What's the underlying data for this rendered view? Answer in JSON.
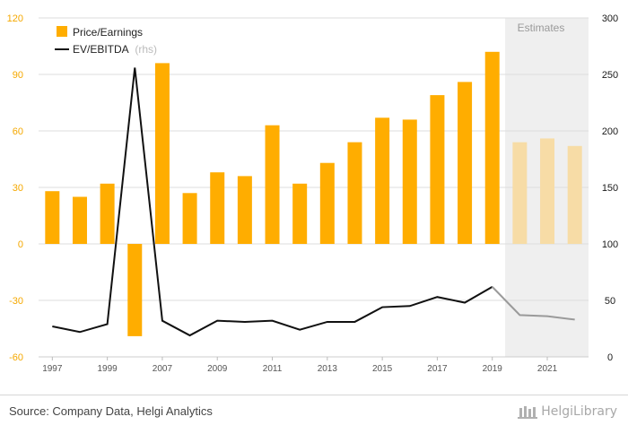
{
  "chart_data": {
    "type": "bar+line",
    "x": [
      1997,
      1998,
      1999,
      2000,
      2007,
      2008,
      2009,
      2010,
      2011,
      2012,
      2013,
      2014,
      2015,
      2016,
      2017,
      2018,
      2019,
      2020,
      2021,
      2022
    ],
    "x_tick_labels": [
      "1997",
      "1999",
      "2007",
      "2009",
      "2011",
      "2013",
      "2015",
      "2017",
      "2019",
      "2021"
    ],
    "estimate_start_index": 17,
    "series": [
      {
        "name": "Price/Earnings",
        "type": "bar",
        "axis": "left",
        "color": "#ffad00",
        "estimate_color": "#f7dca6",
        "values": [
          28,
          25,
          32,
          -49,
          96,
          27,
          38,
          36,
          63,
          32,
          43,
          54,
          67,
          66,
          79,
          86,
          102,
          54,
          56,
          52
        ]
      },
      {
        "name": "EV/EBITDA",
        "name_suffix": "(rhs)",
        "type": "line",
        "axis": "right",
        "color": "#111111",
        "estimate_color": "#9a9a9a",
        "values": [
          27,
          22,
          29,
          256,
          32,
          19,
          32,
          31,
          32,
          24,
          31,
          31,
          44,
          45,
          53,
          48,
          62,
          37,
          36,
          33
        ]
      }
    ],
    "y_left": {
      "min": -60,
      "max": 120,
      "ticks": [
        -60,
        -30,
        0,
        30,
        60,
        90,
        120
      ],
      "color": "#f5a800"
    },
    "y_right": {
      "min": 0,
      "max": 300,
      "ticks": [
        0,
        50,
        100,
        150,
        200,
        250,
        300
      ]
    },
    "estimates_label": "Estimates",
    "legend": {
      "position": "top-left"
    },
    "grid": "horizontal"
  },
  "footer": {
    "source": "Source: Company Data, Helgi Analytics",
    "brand": "HelgiLibrary"
  }
}
